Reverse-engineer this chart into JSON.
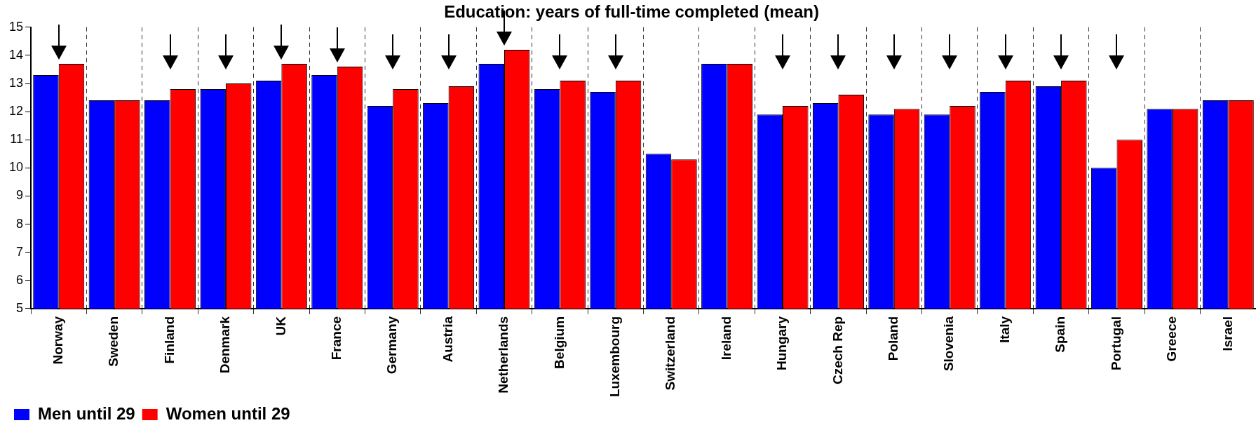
{
  "chart_data": {
    "type": "bar",
    "title": "Education: years of full-time completed (mean)",
    "categories": [
      "Norway",
      "Sweden",
      "Finland",
      "Denmark",
      "UK",
      "France",
      "Germany",
      "Austria",
      "Netherlands",
      "Belgium",
      "Luxembourg",
      "Switzerland",
      "Ireland",
      "Hungary",
      "Czech Rep",
      "Poland",
      "Slovenia",
      "Italy",
      "Spain",
      "Portugal",
      "Greece",
      "Israel"
    ],
    "series": [
      {
        "name": "Men until 29",
        "color": "#0000ff",
        "values": [
          13.3,
          12.4,
          12.4,
          12.8,
          13.1,
          13.3,
          12.2,
          12.3,
          13.7,
          12.8,
          12.7,
          10.5,
          13.7,
          11.9,
          12.3,
          11.9,
          11.9,
          12.7,
          12.9,
          10.0,
          12.1,
          12.4
        ]
      },
      {
        "name": "Women until 29",
        "color": "#ff0000",
        "values": [
          13.7,
          12.4,
          12.8,
          13.0,
          13.7,
          13.6,
          12.8,
          12.9,
          14.2,
          13.1,
          13.1,
          10.3,
          13.7,
          12.2,
          12.6,
          12.1,
          12.2,
          13.1,
          13.1,
          11.0,
          12.1,
          12.4
        ]
      }
    ],
    "ylim": [
      5,
      15
    ],
    "yticks": [
      5,
      6,
      7,
      8,
      9,
      10,
      11,
      12,
      13,
      14,
      15
    ],
    "grid": "x",
    "legend": "bottom left"
  }
}
